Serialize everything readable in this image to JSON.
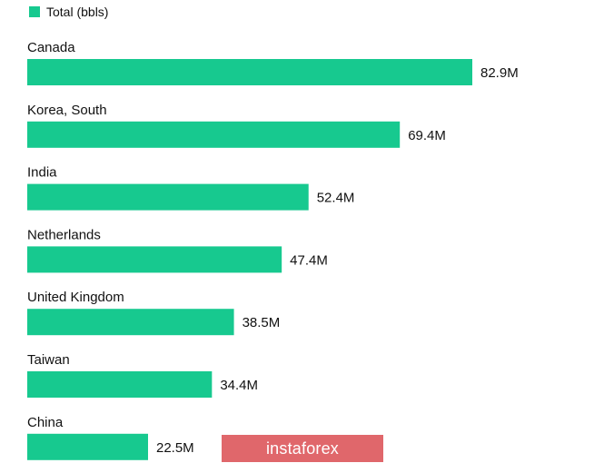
{
  "legend": {
    "label": "Total (bbls)",
    "color": "#17c98f"
  },
  "watermark": {
    "text": "instaforex",
    "color": "#e0676b"
  },
  "chart_data": {
    "type": "bar",
    "orientation": "horizontal",
    "categories": [
      "Canada",
      "Korea, South",
      "India",
      "Netherlands",
      "United Kingdom",
      "Taiwan",
      "China"
    ],
    "series": [
      {
        "name": "Total (bbls)",
        "values": [
          82.9,
          69.4,
          52.4,
          47.4,
          38.5,
          34.4,
          22.5
        ]
      }
    ],
    "data_labels": [
      "82.9M",
      "69.4M",
      "52.4M",
      "47.4M",
      "38.5M",
      "34.4M",
      "22.5M"
    ],
    "unit": "M",
    "legend_position": "top-left",
    "grid": false
  }
}
